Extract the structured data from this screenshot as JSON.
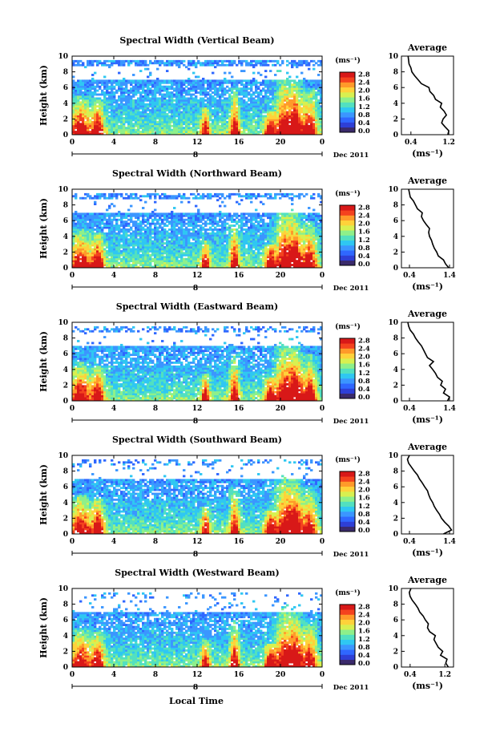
{
  "figure": {
    "time_axis_label": "Local Time",
    "ylabel": "Height (km)",
    "average_title": "Average",
    "colorbar_unit": "(ms⁻¹)",
    "average_xlabel": "(ms⁻¹)",
    "date_label": "Dec 2011",
    "date_day": "8",
    "colorbar_ticks": [
      "0.0",
      "0.4",
      "0.8",
      "1.2",
      "1.6",
      "2.0",
      "2.4",
      "2.8"
    ],
    "colormap": [
      "#3a2a6b",
      "#2e3fd6",
      "#2f67ff",
      "#3b96ff",
      "#2fc7f2",
      "#52e0c0",
      "#8ef08a",
      "#d8f050",
      "#ffd23a",
      "#ff9a2a",
      "#f4421e",
      "#d81818"
    ]
  },
  "chart_data": [
    {
      "type": "heatmap",
      "title": "Spectral Width (Vertical Beam)",
      "x_ticks": [
        "0",
        "4",
        "8",
        "12",
        "16",
        "20",
        "0"
      ],
      "y_ticks": [
        "0",
        "2",
        "4",
        "6",
        "8",
        "10"
      ],
      "xlim": [
        0,
        24
      ],
      "ylim": [
        0,
        10
      ],
      "colorbar_range": [
        0.0,
        2.8
      ],
      "average": {
        "xlim": [
          0.2,
          1.3
        ],
        "x_ticks": [
          "0.4",
          "1.2"
        ],
        "y_ticks": [
          "0",
          "2",
          "4",
          "6",
          "8",
          "10"
        ],
        "height": [
          0,
          0.5,
          1,
          1.5,
          2,
          2.5,
          3,
          3.5,
          4,
          4.5,
          5,
          5.5,
          6,
          6.5,
          7,
          7.5,
          8,
          8.5,
          9,
          9.5,
          10
        ],
        "value": [
          1.18,
          1.2,
          1.12,
          1.05,
          1.08,
          1.15,
          1.1,
          1.02,
          1.05,
          0.92,
          0.88,
          0.8,
          0.78,
          0.62,
          0.55,
          0.48,
          0.42,
          0.4,
          0.36,
          0.35,
          0.34
        ]
      }
    },
    {
      "type": "heatmap",
      "title": "Spectral Width (Northward Beam)",
      "x_ticks": [
        "0",
        "4",
        "8",
        "12",
        "16",
        "20",
        "0"
      ],
      "y_ticks": [
        "0",
        "2",
        "4",
        "6",
        "8",
        "10"
      ],
      "xlim": [
        0,
        24
      ],
      "ylim": [
        0,
        10
      ],
      "colorbar_range": [
        0.0,
        2.8
      ],
      "average": {
        "xlim": [
          0.2,
          1.5
        ],
        "x_ticks": [
          "0.4",
          "1.4"
        ],
        "y_ticks": [
          "0",
          "2",
          "4",
          "6",
          "8",
          "10"
        ],
        "height": [
          0,
          0.5,
          1,
          1.5,
          2,
          2.5,
          3,
          3.5,
          4,
          4.5,
          5,
          5.5,
          6,
          6.5,
          7,
          7.5,
          8,
          8.5,
          9,
          9.5,
          10
        ],
        "value": [
          1.38,
          1.3,
          1.25,
          1.12,
          1.08,
          1.02,
          0.98,
          0.95,
          0.9,
          0.88,
          0.9,
          0.82,
          0.75,
          0.7,
          0.72,
          0.6,
          0.55,
          0.5,
          0.42,
          0.4,
          0.38
        ]
      }
    },
    {
      "type": "heatmap",
      "title": "Spectral Width (Eastward Beam)",
      "x_ticks": [
        "0",
        "4",
        "8",
        "12",
        "16",
        "20",
        "0"
      ],
      "y_ticks": [
        "0",
        "2",
        "4",
        "6",
        "8",
        "10"
      ],
      "xlim": [
        0,
        24
      ],
      "ylim": [
        0,
        10
      ],
      "colorbar_range": [
        0.0,
        2.8
      ],
      "average": {
        "xlim": [
          0.2,
          1.5
        ],
        "x_ticks": [
          "0.4",
          "1.4"
        ],
        "y_ticks": [
          "0",
          "2",
          "4",
          "6",
          "8",
          "10"
        ],
        "height": [
          0,
          0.5,
          1,
          1.5,
          2,
          2.5,
          3,
          3.5,
          4,
          4.5,
          5,
          5.5,
          6,
          6.5,
          7,
          7.5,
          8,
          8.5,
          9,
          9.5,
          10
        ],
        "value": [
          1.35,
          1.4,
          1.25,
          1.3,
          1.18,
          1.22,
          1.1,
          1.05,
          0.98,
          0.9,
          1.0,
          0.85,
          0.8,
          0.75,
          0.7,
          0.62,
          0.55,
          0.5,
          0.42,
          0.38,
          0.36
        ]
      }
    },
    {
      "type": "heatmap",
      "title": "Spectral Width (Southward Beam)",
      "x_ticks": [
        "0",
        "4",
        "8",
        "12",
        "16",
        "20",
        "0"
      ],
      "y_ticks": [
        "0",
        "2",
        "4",
        "6",
        "8",
        "10"
      ],
      "xlim": [
        0,
        24
      ],
      "ylim": [
        0,
        10
      ],
      "colorbar_range": [
        0.0,
        2.8
      ],
      "average": {
        "xlim": [
          0.2,
          1.5
        ],
        "x_ticks": [
          "0.4",
          "1.4"
        ],
        "y_ticks": [
          "0",
          "2",
          "4",
          "6",
          "8",
          "10"
        ],
        "height": [
          0,
          0.5,
          1,
          1.5,
          2,
          2.5,
          3,
          3.5,
          4,
          4.5,
          5,
          5.5,
          6,
          6.5,
          7,
          7.5,
          8,
          8.5,
          9,
          9.5,
          10
        ],
        "value": [
          1.25,
          1.45,
          1.38,
          1.28,
          1.2,
          1.15,
          1.08,
          1.02,
          0.98,
          0.92,
          0.88,
          0.85,
          0.78,
          0.72,
          0.65,
          0.6,
          0.52,
          0.45,
          0.38,
          0.35,
          0.4
        ]
      }
    },
    {
      "type": "heatmap",
      "title": "Spectral Width (Westward Beam)",
      "x_ticks": [
        "0",
        "4",
        "8",
        "12",
        "16",
        "20",
        "0"
      ],
      "y_ticks": [
        "0",
        "2",
        "4",
        "6",
        "8",
        "10"
      ],
      "xlim": [
        0,
        24
      ],
      "ylim": [
        0,
        10
      ],
      "colorbar_range": [
        0.0,
        2.8
      ],
      "average": {
        "xlim": [
          0.2,
          1.4
        ],
        "x_ticks": [
          "0.4",
          "1.2"
        ],
        "y_ticks": [
          "0",
          "2",
          "4",
          "6",
          "8",
          "10"
        ],
        "height": [
          0,
          0.5,
          1,
          1.5,
          2,
          2.5,
          3,
          3.5,
          4,
          4.5,
          5,
          5.5,
          6,
          6.5,
          7,
          7.5,
          8,
          8.5,
          9,
          9.5,
          10
        ],
        "value": [
          1.28,
          1.22,
          1.25,
          1.1,
          1.15,
          1.05,
          1.0,
          0.95,
          0.98,
          0.85,
          0.8,
          0.82,
          0.75,
          0.7,
          0.62,
          0.58,
          0.52,
          0.45,
          0.4,
          0.38,
          0.42
        ]
      }
    }
  ]
}
